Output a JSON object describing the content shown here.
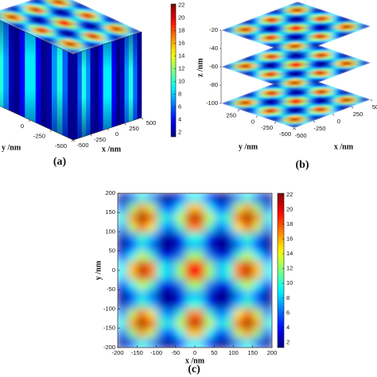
{
  "chart_data": [
    {
      "type": "surface3d",
      "label": "(a)",
      "xlabel": "x /nm",
      "ylabel": "y /nm",
      "xlim": [
        -500,
        500
      ],
      "ylim": [
        -500,
        500
      ],
      "xticks": [
        -500,
        -250,
        0,
        250,
        500
      ],
      "yticks": [
        -500,
        -250,
        0
      ],
      "colormap": "jet",
      "clim": [
        1.3,
        22.2
      ],
      "cticks": [
        2,
        4,
        6,
        8,
        10,
        12,
        14,
        16,
        18,
        20,
        22
      ]
    },
    {
      "type": "layers3d",
      "label": "(b)",
      "xlabel": "x /nm",
      "ylabel": "y /nm",
      "zlabel": "z /nm",
      "xlim": [
        -500,
        500
      ],
      "ylim": [
        -500,
        500
      ],
      "zlim": [
        -100,
        -20
      ],
      "xticks": [
        -500,
        -250,
        0,
        250,
        500
      ],
      "yticks": [
        -500,
        -250,
        0,
        250
      ],
      "zticks": [
        -100,
        -80,
        -60,
        -40,
        -20
      ],
      "layers": [
        -20,
        -60,
        -100
      ],
      "colormap": "jet",
      "clim": [
        1.3,
        22.2
      ]
    },
    {
      "type": "heatmap",
      "label": "(c)",
      "xlabel": "x /nm",
      "ylabel": "y /nm",
      "xlim": [
        -200,
        200
      ],
      "ylim": [
        -200,
        200
      ],
      "xticks": [
        -200,
        -150,
        -100,
        -50,
        0,
        50,
        100,
        150,
        200
      ],
      "yticks": [
        -200,
        -150,
        -100,
        -50,
        0,
        50,
        100,
        150,
        200
      ],
      "colormap": "jet",
      "clim": [
        1.3,
        22.2
      ],
      "cticks": [
        2,
        4,
        6,
        8,
        10,
        12,
        14,
        16,
        18,
        20,
        22
      ],
      "z": [
        [
          1.8,
          5.9,
          9.7,
          7.0,
          2.3,
          1.4,
          3.9,
          8.8,
          8.8,
          3.9,
          1.4,
          2.3,
          7.0,
          9.7,
          5.9,
          1.8
        ],
        [
          5.9,
          11.9,
          16.6,
          13.2,
          6.8,
          5.0,
          9.1,
          15.5,
          15.5,
          9.1,
          5.0,
          6.8,
          13.2,
          16.6,
          11.9,
          5.9
        ],
        [
          9.7,
          16.6,
          21.9,
          18.1,
          10.7,
          8.5,
          13.4,
          20.7,
          20.7,
          13.4,
          8.5,
          10.7,
          18.1,
          21.9,
          16.6,
          9.7
        ],
        [
          7.0,
          13.2,
          18.1,
          14.6,
          7.9,
          6.0,
          10.3,
          17.0,
          17.0,
          10.3,
          6.0,
          7.9,
          14.6,
          18.1,
          13.2,
          7.0
        ],
        [
          2.3,
          6.8,
          10.7,
          7.9,
          2.9,
          1.7,
          4.6,
          9.8,
          9.8,
          4.6,
          1.7,
          2.9,
          7.9,
          10.7,
          6.8,
          2.3
        ],
        [
          1.4,
          5.0,
          8.5,
          6.0,
          1.7,
          1.0,
          3.1,
          7.7,
          7.7,
          3.1,
          1.0,
          1.7,
          6.0,
          8.5,
          5.0,
          1.4
        ],
        [
          3.9,
          9.1,
          13.4,
          10.3,
          4.6,
          3.1,
          6.6,
          12.4,
          12.4,
          6.6,
          3.1,
          4.6,
          10.3,
          13.4,
          9.1,
          3.9
        ],
        [
          8.8,
          15.5,
          20.7,
          17.0,
          9.8,
          7.7,
          12.4,
          19.4,
          19.4,
          12.4,
          7.7,
          9.8,
          17.0,
          20.7,
          15.5,
          8.8
        ],
        [
          8.8,
          15.5,
          20.7,
          17.0,
          9.8,
          7.7,
          12.4,
          19.4,
          19.4,
          12.4,
          7.7,
          9.8,
          17.0,
          20.7,
          15.5,
          8.8
        ],
        [
          3.9,
          9.1,
          13.4,
          10.3,
          4.6,
          3.1,
          6.6,
          12.4,
          12.4,
          6.6,
          3.1,
          4.6,
          10.3,
          13.4,
          9.1,
          3.9
        ],
        [
          1.4,
          5.0,
          8.5,
          6.0,
          1.7,
          1.0,
          3.1,
          7.7,
          7.7,
          3.1,
          1.0,
          1.7,
          6.0,
          8.5,
          5.0,
          1.4
        ],
        [
          2.3,
          6.8,
          10.7,
          7.9,
          2.9,
          1.7,
          4.6,
          9.8,
          9.8,
          4.6,
          1.7,
          2.9,
          7.9,
          10.7,
          6.8,
          2.3
        ],
        [
          7.0,
          13.2,
          18.1,
          14.6,
          7.9,
          6.0,
          10.3,
          17.0,
          17.0,
          10.3,
          6.0,
          7.9,
          14.6,
          18.1,
          13.2,
          7.0
        ],
        [
          9.7,
          16.6,
          21.9,
          18.1,
          10.7,
          8.5,
          13.4,
          20.7,
          20.7,
          13.4,
          8.5,
          10.7,
          18.1,
          21.9,
          16.6,
          9.7
        ],
        [
          5.9,
          11.9,
          16.6,
          13.2,
          6.8,
          5.0,
          9.1,
          15.5,
          15.5,
          9.1,
          5.0,
          6.8,
          13.2,
          16.6,
          11.9,
          5.9
        ],
        [
          1.8,
          5.9,
          9.7,
          7.0,
          2.3,
          1.4,
          3.9,
          8.8,
          8.8,
          3.9,
          1.4,
          2.3,
          7.0,
          9.7,
          5.9,
          1.8
        ]
      ]
    }
  ]
}
